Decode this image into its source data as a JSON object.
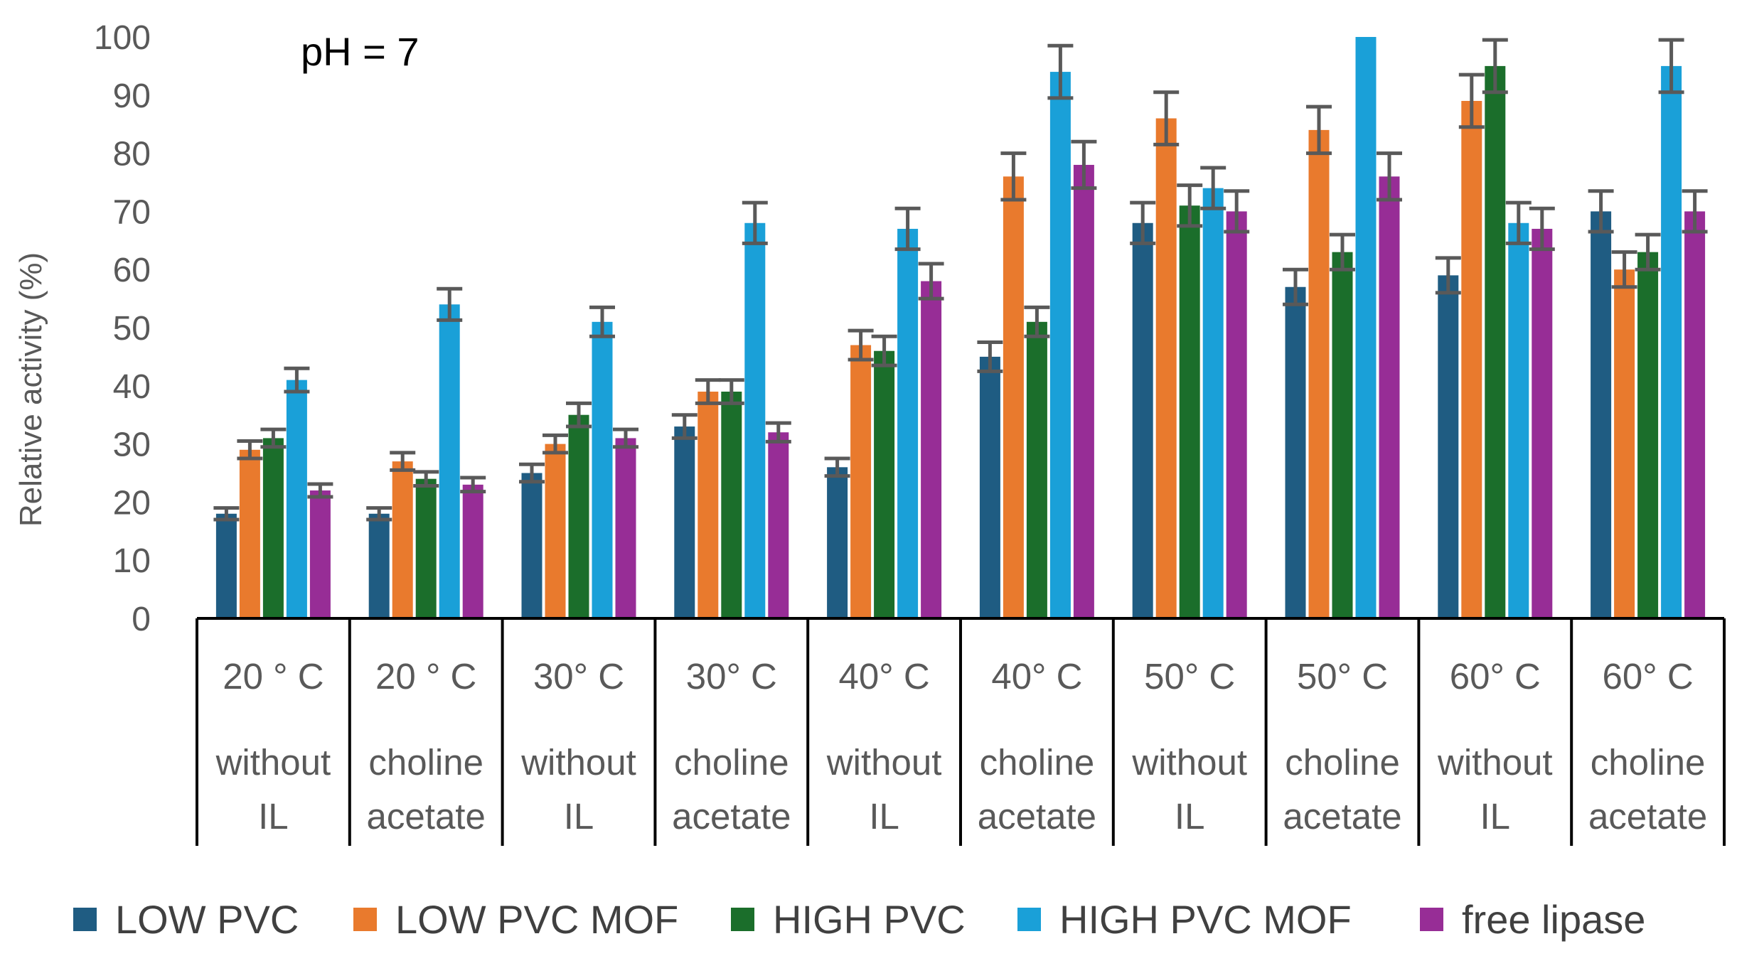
{
  "chart_data": {
    "type": "bar",
    "ylabel": "Relative activity (%)",
    "ylim": [
      0,
      100
    ],
    "yticks": [
      "0",
      "10",
      "20",
      "30",
      "40",
      "50",
      "60",
      "70",
      "80",
      "90",
      "100"
    ],
    "annotation": "pH = 7",
    "categories": [
      {
        "temp": "20 ° C",
        "line1": "without",
        "line2": "IL"
      },
      {
        "temp": "20 ° C",
        "line1": "choline",
        "line2": "acetate"
      },
      {
        "temp": "30° C",
        "line1": "without",
        "line2": "IL"
      },
      {
        "temp": "30° C",
        "line1": "choline",
        "line2": "acetate"
      },
      {
        "temp": "40° C",
        "line1": "without",
        "line2": "IL"
      },
      {
        "temp": "40° C",
        "line1": "choline",
        "line2": "acetate"
      },
      {
        "temp": "50° C",
        "line1": "without",
        "line2": "IL"
      },
      {
        "temp": "50° C",
        "line1": "choline",
        "line2": "acetate"
      },
      {
        "temp": "60° C",
        "line1": "without",
        "line2": "IL"
      },
      {
        "temp": "60° C",
        "line1": "choline",
        "line2": "acetate"
      }
    ],
    "series": [
      {
        "name": "LOW PVC",
        "color": "#1f5c82",
        "values": [
          18,
          18,
          25,
          33,
          26,
          45,
          68,
          57,
          59,
          70
        ],
        "errors": [
          1,
          1,
          1.5,
          2,
          1.5,
          2.5,
          3.5,
          3,
          3,
          3.5
        ]
      },
      {
        "name": "LOW PVC MOF",
        "color": "#e97a2d",
        "values": [
          29,
          27,
          30,
          39,
          47,
          76,
          86,
          84,
          89,
          60
        ],
        "errors": [
          1.5,
          1.5,
          1.5,
          2,
          2.5,
          4,
          4.5,
          4,
          4.5,
          3
        ]
      },
      {
        "name": "HIGH PVC",
        "color": "#1b6e2b",
        "values": [
          31,
          24,
          35,
          39,
          46,
          51,
          71,
          63,
          95,
          63
        ],
        "errors": [
          1.5,
          1.2,
          2,
          2,
          2.5,
          2.5,
          3.5,
          3,
          4.5,
          3
        ]
      },
      {
        "name": "HIGH PVC MOF",
        "color": "#1aa0d8",
        "values": [
          41,
          54,
          51,
          68,
          67,
          94,
          74,
          100,
          68,
          95
        ],
        "errors": [
          2,
          2.7,
          2.5,
          3.5,
          3.5,
          4.5,
          3.5,
          0,
          3.5,
          4.5
        ]
      },
      {
        "name": "free lipase",
        "color": "#972d96",
        "values": [
          22,
          23,
          31,
          32,
          58,
          78,
          70,
          76,
          67,
          70
        ],
        "errors": [
          1.1,
          1.2,
          1.5,
          1.6,
          3,
          4,
          3.5,
          4,
          3.5,
          3.5
        ]
      }
    ]
  }
}
